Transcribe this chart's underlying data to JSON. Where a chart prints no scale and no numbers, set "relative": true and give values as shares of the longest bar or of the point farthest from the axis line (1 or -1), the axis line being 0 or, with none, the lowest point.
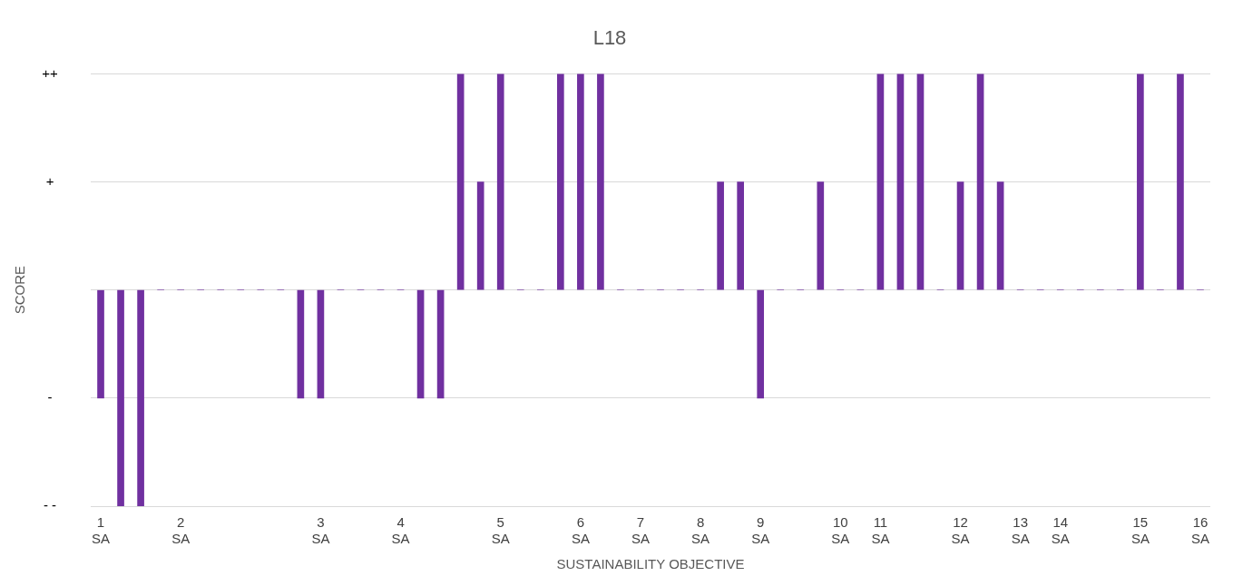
{
  "chart_data": {
    "type": "bar",
    "title": "L18",
    "xlabel": "SUSTAINABILITY OBJECTIVE",
    "ylabel": "SCORE",
    "categories": [
      "1 SA",
      null,
      null,
      null,
      "2 SA",
      null,
      null,
      null,
      null,
      null,
      null,
      "3 SA",
      null,
      null,
      null,
      "4 SA",
      null,
      null,
      null,
      null,
      "5 SA",
      null,
      null,
      null,
      "6 SA",
      null,
      null,
      "7 SA",
      null,
      null,
      "8 SA",
      null,
      null,
      "9 SA",
      null,
      null,
      null,
      "10 SA",
      null,
      "11 SA",
      null,
      null,
      null,
      "12 SA",
      null,
      null,
      "13 SA",
      null,
      "14 SA",
      null,
      null,
      null,
      "15 SA",
      null,
      null,
      "16 SA"
    ],
    "values": [
      -0.5,
      -1,
      -1,
      0,
      0,
      0,
      0,
      0,
      0,
      0,
      -0.5,
      -0.5,
      0,
      0,
      0,
      0,
      -0.5,
      -0.5,
      1,
      0.5,
      1,
      0,
      0,
      1,
      1,
      1,
      0,
      0,
      0,
      0,
      0,
      0.5,
      0.5,
      -0.5,
      0,
      0,
      0.5,
      0,
      0,
      1,
      1,
      1,
      0,
      0.5,
      1,
      0.5,
      0,
      0,
      0,
      0,
      0,
      0,
      1,
      0,
      1,
      0
    ],
    "color": "#7030a0",
    "relative": true,
    "annotations": [
      "++",
      "+",
      "-",
      "- -"
    ],
    "grid": "y"
  }
}
